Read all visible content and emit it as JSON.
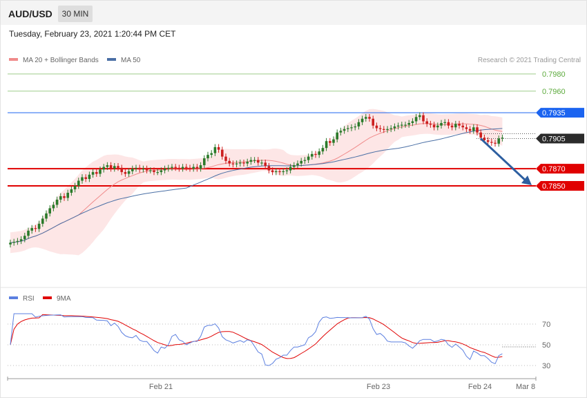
{
  "header": {
    "symbol": "AUD/USD",
    "timeframe": "30 MIN",
    "datetime": "Tuesday, February 23, 2021 1:20:44 PM CET"
  },
  "credit": "Research © 2021 Trading Central",
  "colors": {
    "bull": "#2a7a2a",
    "bear": "#cc1e1e",
    "ma20": "#f08a8a",
    "band_fill": "#fde3e3",
    "ma50": "#4a6fa5",
    "resistance_green": "#5caa3c",
    "pivot_blue": "#1b64f0",
    "support_red": "#e00000",
    "rsi": "#5b7fe0",
    "rsi_ma": "#e00000",
    "arrow": "#2d5fa0"
  },
  "chart_data": [
    {
      "type": "candlestick",
      "title": "",
      "legend": [
        "MA 20 + Bollinger Bands",
        "MA 50"
      ],
      "legend_position": "top-left",
      "ylim": [
        0.7755,
        0.7985
      ],
      "x_ticks": [
        "Feb 21",
        "Feb 23",
        "Feb 24",
        "Mar 8"
      ],
      "levels": [
        {
          "value": 0.798,
          "label": "0.7980",
          "kind": "resistance"
        },
        {
          "value": 0.796,
          "label": "0.7960",
          "kind": "resistance"
        },
        {
          "value": 0.7935,
          "label": "0.7935",
          "kind": "pivot"
        },
        {
          "value": 0.7905,
          "label": "0.7905",
          "kind": "last"
        },
        {
          "value": 0.787,
          "label": "0.7870",
          "kind": "support"
        },
        {
          "value": 0.785,
          "label": "0.7850",
          "kind": "support"
        }
      ],
      "forecast_arrow": {
        "from": 0.7905,
        "to": 0.785,
        "direction": "down"
      },
      "close": [
        0.7784,
        0.7785,
        0.7786,
        0.7788,
        0.7792,
        0.7798,
        0.7801,
        0.78,
        0.7806,
        0.7812,
        0.7818,
        0.7824,
        0.7828,
        0.7834,
        0.7838,
        0.7836,
        0.7842,
        0.7846,
        0.785,
        0.7856,
        0.786,
        0.7858,
        0.7863,
        0.7866,
        0.7864,
        0.7869,
        0.7872,
        0.7874,
        0.787,
        0.7873,
        0.7871,
        0.7866,
        0.7864,
        0.7867,
        0.787,
        0.7871,
        0.7869,
        0.787,
        0.7868,
        0.7868,
        0.7866,
        0.7866,
        0.7868,
        0.787,
        0.7871,
        0.7872,
        0.7871,
        0.787,
        0.7872,
        0.7871,
        0.787,
        0.7872,
        0.787,
        0.7874,
        0.7882,
        0.7886,
        0.7888,
        0.7895,
        0.7892,
        0.7884,
        0.7879,
        0.7876,
        0.7875,
        0.7876,
        0.7877,
        0.7876,
        0.7878,
        0.788,
        0.788,
        0.7877,
        0.7877,
        0.7873,
        0.7868,
        0.7866,
        0.7867,
        0.7866,
        0.7867,
        0.7868,
        0.7872,
        0.7874,
        0.7876,
        0.7879,
        0.788,
        0.7884,
        0.7887,
        0.7886,
        0.789,
        0.7894,
        0.7902,
        0.79,
        0.7904,
        0.7912,
        0.7914,
        0.7916,
        0.7917,
        0.7918,
        0.7919,
        0.7924,
        0.7928,
        0.793,
        0.7928,
        0.792,
        0.7917,
        0.7916,
        0.7915,
        0.7916,
        0.7917,
        0.7919,
        0.792,
        0.7921,
        0.7921,
        0.7923,
        0.7925,
        0.793,
        0.7932,
        0.7925,
        0.7922,
        0.7921,
        0.7918,
        0.792,
        0.7923,
        0.7924,
        0.792,
        0.7918,
        0.7922,
        0.792,
        0.7918,
        0.7916,
        0.7914,
        0.7918,
        0.7912,
        0.7906,
        0.7903,
        0.7901,
        0.79,
        0.7899,
        0.7905,
        0.7906
      ],
      "series": [
        {
          "name": "MA 20 + Bollinger Bands"
        },
        {
          "name": "MA 50"
        }
      ]
    },
    {
      "type": "line",
      "legend": [
        "RSI",
        "9MA"
      ],
      "ylim": [
        20,
        80
      ],
      "y_ticks": [
        70,
        50,
        30
      ],
      "rsi_last": 48,
      "series": [
        {
          "name": "RSI"
        },
        {
          "name": "9MA"
        }
      ]
    }
  ]
}
